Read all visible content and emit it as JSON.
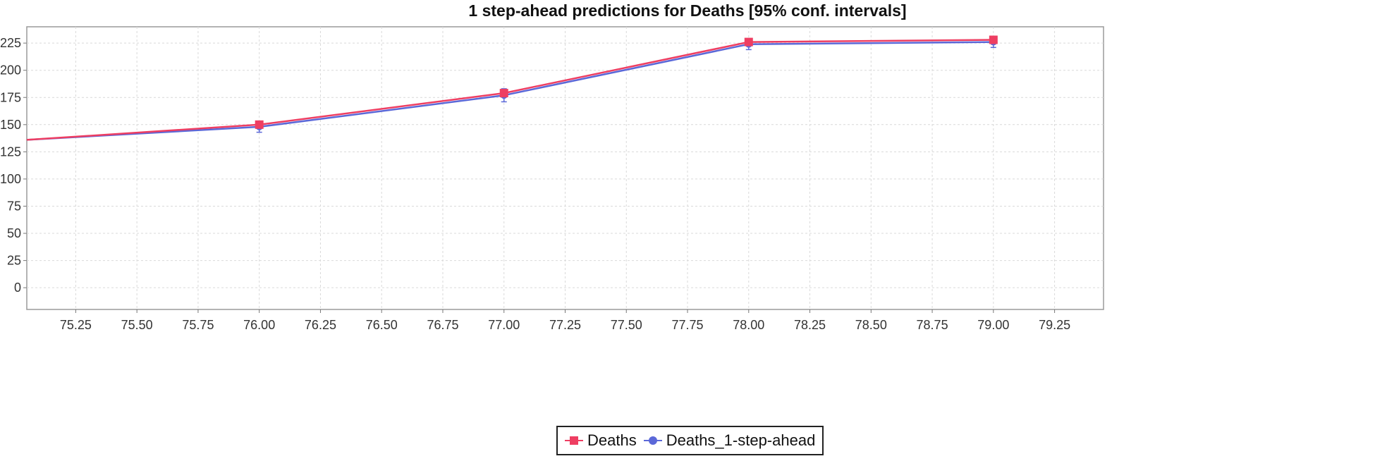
{
  "chart_data": {
    "type": "line",
    "title": "1 step-ahead predictions for Deaths [95% conf. intervals]",
    "xlabel": "",
    "ylabel": "",
    "xlim": [
      75.05,
      79.45
    ],
    "ylim": [
      -20,
      240
    ],
    "x_ticks": [
      "75.25",
      "75.50",
      "75.75",
      "76.00",
      "76.25",
      "76.50",
      "76.75",
      "77.00",
      "77.25",
      "77.50",
      "77.75",
      "78.00",
      "78.25",
      "78.50",
      "78.75",
      "79.00",
      "79.25"
    ],
    "y_ticks": [
      "0",
      "25",
      "50",
      "75",
      "100",
      "125",
      "150",
      "175",
      "200",
      "225"
    ],
    "grid": true,
    "legend_position": "bottom",
    "series": [
      {
        "name": "Deaths",
        "color": "#ee3e62",
        "marker": "square",
        "x": [
          75.05,
          76,
          77,
          78,
          79
        ],
        "y": [
          136,
          150,
          179,
          226,
          228
        ]
      },
      {
        "name": "Deaths_1-step-ahead",
        "color": "#5b68d8",
        "marker": "circle",
        "x": [
          75.05,
          76,
          77,
          78,
          79
        ],
        "y": [
          136,
          148,
          177,
          224,
          226
        ],
        "ci_low": [
          null,
          143,
          171,
          219,
          221
        ],
        "ci_high": [
          null,
          153,
          183,
          229,
          231
        ]
      }
    ]
  }
}
